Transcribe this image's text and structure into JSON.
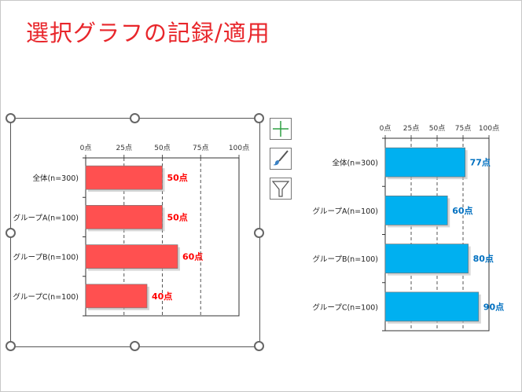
{
  "slide": {
    "title": "選択グラフの記録/適用"
  },
  "tools": [
    {
      "name": "chart-elements-button",
      "icon": "plus-icon"
    },
    {
      "name": "chart-styles-button",
      "icon": "brush-icon"
    },
    {
      "name": "chart-filters-button",
      "icon": "funnel-icon"
    }
  ],
  "chart_data": [
    {
      "type": "bar",
      "orientation": "horizontal",
      "categories": [
        "全体(n=300)",
        "グループA(n=100)",
        "グループB(n=100)",
        "グループC(n=100)"
      ],
      "values": [
        50,
        50,
        60,
        40
      ],
      "data_labels": [
        "50点",
        "50点",
        "60点",
        "40点"
      ],
      "tick_labels": [
        "0点",
        "25点",
        "50点",
        "75点",
        "100点"
      ],
      "xlim": [
        0,
        100
      ],
      "grid": "dashed vertical",
      "bar_color": "#ff5050",
      "label_color": "#ff0000"
    },
    {
      "type": "bar",
      "orientation": "horizontal",
      "categories": [
        "全体(n=300)",
        "グループA(n=100)",
        "グループB(n=100)",
        "グループC(n=100)"
      ],
      "values": [
        77,
        60,
        80,
        90
      ],
      "data_labels": [
        "77点",
        "60点",
        "80点",
        "90点"
      ],
      "tick_labels": [
        "0点",
        "25点",
        "50点",
        "75点",
        "100点"
      ],
      "xlim": [
        0,
        100
      ],
      "grid": "dashed vertical",
      "bar_color": "#00b0f0",
      "label_color": "#0070c0"
    }
  ]
}
